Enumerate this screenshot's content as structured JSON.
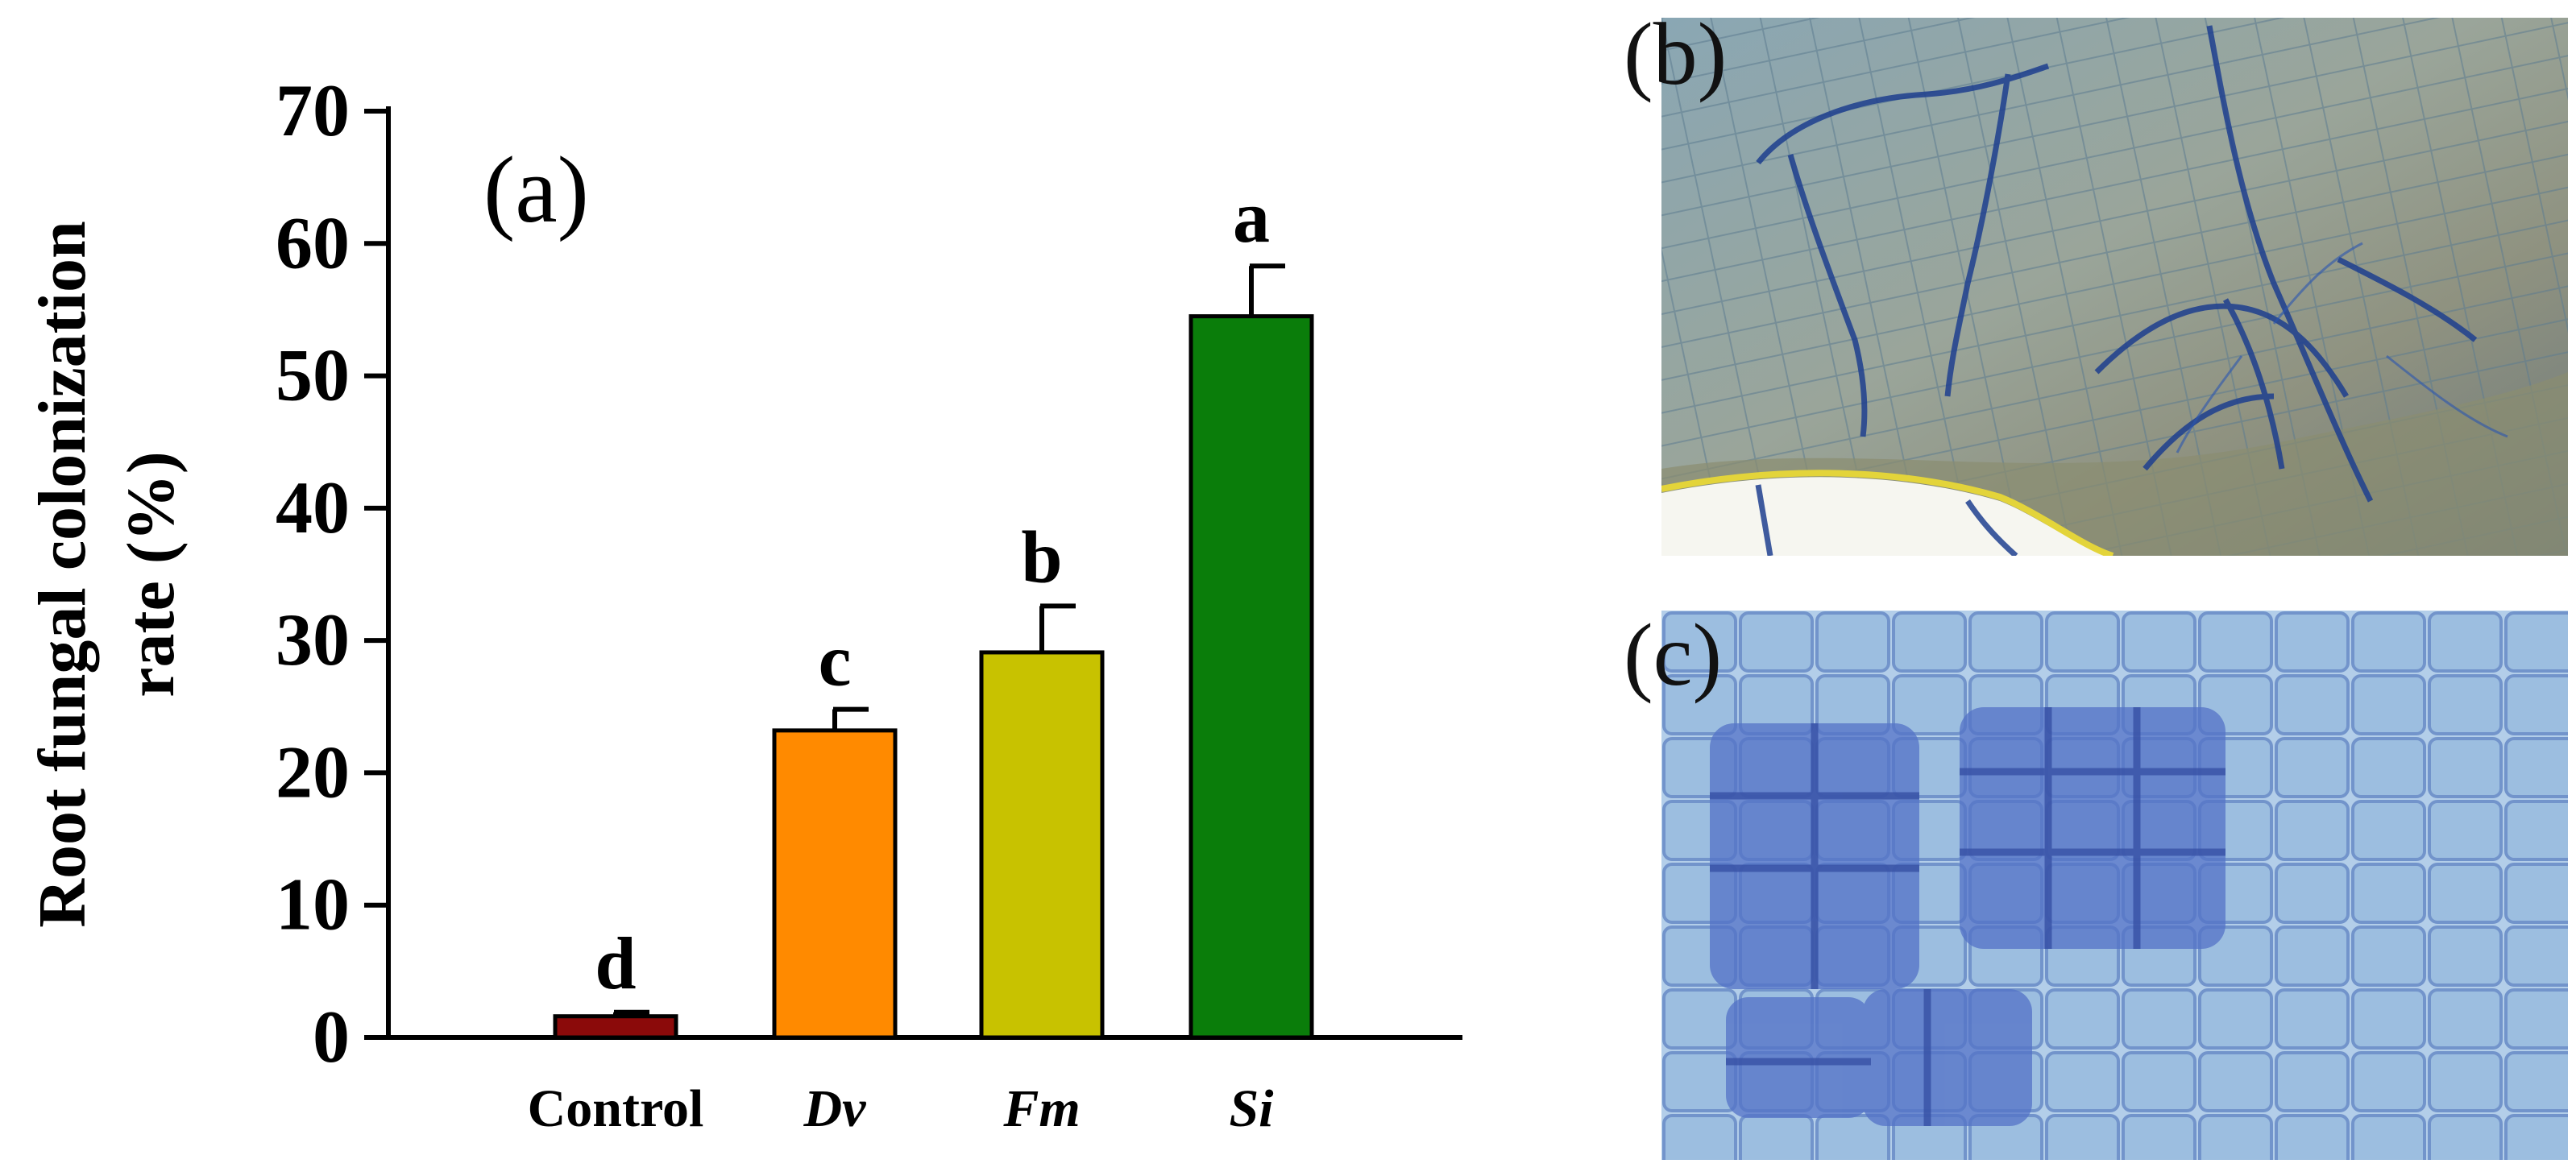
{
  "chart_data": {
    "type": "bar",
    "panel_label": "(a)",
    "ylabel_line1": "Root fungal colonization",
    "ylabel_line2": "rate (%)",
    "categories": [
      "Control",
      "Dv",
      "Fm",
      "Si"
    ],
    "category_italic": [
      false,
      true,
      true,
      true
    ],
    "values": [
      1.6,
      23.2,
      29.1,
      54.5
    ],
    "errors": [
      0.3,
      1.6,
      3.5,
      3.8
    ],
    "significance": [
      "d",
      "c",
      "b",
      "a"
    ],
    "colors": [
      "#8b0a0a",
      "#ff8a00",
      "#c8c200",
      "#0a7d0a"
    ],
    "ylim": [
      0,
      70
    ],
    "yticks": [
      0,
      10,
      20,
      30,
      40,
      50,
      60,
      70
    ],
    "grid": false,
    "legend": "none"
  },
  "photos": {
    "b": {
      "label": "(b)",
      "subject": "stained-root-hyphae-micrograph"
    },
    "c": {
      "label": "(c)",
      "subject": "stained-root-cells-micrograph"
    }
  }
}
